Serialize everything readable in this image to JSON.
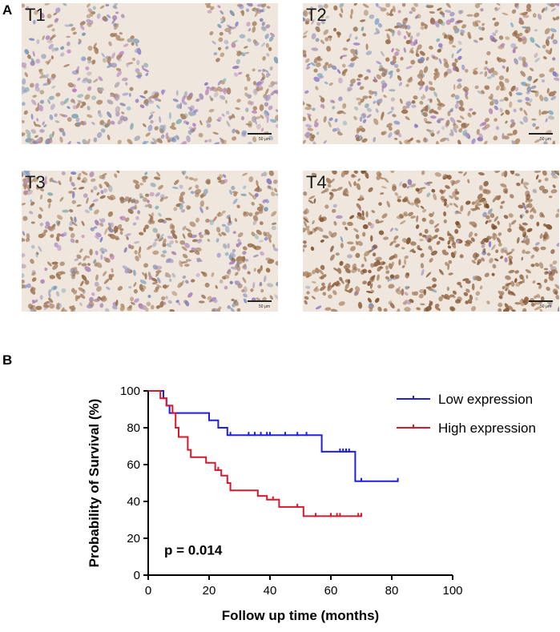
{
  "panel_a": {
    "letter": "A",
    "images": [
      {
        "label": "T1",
        "scale": "50 μm",
        "intensity": 0.25
      },
      {
        "label": "T2",
        "scale": "50 μm",
        "intensity": 0.5
      },
      {
        "label": "T3",
        "scale": "50 μm",
        "intensity": 0.55
      },
      {
        "label": "T4",
        "scale": "50 μm",
        "intensity": 0.95
      }
    ]
  },
  "panel_b": {
    "letter": "B"
  },
  "chart_data": {
    "type": "line",
    "step": true,
    "xlabel": "Follow up time (months)",
    "ylabel": "Probability of Survival (%)",
    "xlim": [
      0,
      100
    ],
    "ylim": [
      0,
      100
    ],
    "xticks": [
      0,
      20,
      40,
      60,
      80,
      100
    ],
    "yticks": [
      0,
      20,
      40,
      60,
      80,
      100
    ],
    "annotation": "p = 0.014",
    "legend_position": "top-right",
    "series": [
      {
        "name": "Low expression",
        "color": "#1f1fe0",
        "points": [
          [
            0,
            100
          ],
          [
            5,
            96
          ],
          [
            6,
            92
          ],
          [
            7,
            88
          ],
          [
            20,
            84
          ],
          [
            23,
            80
          ],
          [
            26,
            76
          ],
          [
            57,
            67
          ],
          [
            68,
            51
          ],
          [
            82,
            51
          ]
        ],
        "censored": [
          [
            27,
            76
          ],
          [
            33,
            76
          ],
          [
            35,
            76
          ],
          [
            37,
            76
          ],
          [
            39,
            76
          ],
          [
            40,
            76
          ],
          [
            45,
            76
          ],
          [
            49,
            76
          ],
          [
            52,
            76
          ],
          [
            63,
            67
          ],
          [
            64,
            67
          ],
          [
            65,
            67
          ],
          [
            66,
            67
          ],
          [
            70,
            51
          ],
          [
            82,
            51
          ]
        ]
      },
      {
        "name": "High expression",
        "color": "#d61a2b",
        "points": [
          [
            0,
            100
          ],
          [
            4,
            96
          ],
          [
            6,
            92
          ],
          [
            8,
            88
          ],
          [
            9,
            80
          ],
          [
            10,
            75
          ],
          [
            13,
            68
          ],
          [
            14,
            64
          ],
          [
            19,
            61
          ],
          [
            22,
            57
          ],
          [
            24,
            54
          ],
          [
            26,
            50
          ],
          [
            27,
            46
          ],
          [
            36,
            43
          ],
          [
            39,
            41
          ],
          [
            43,
            37
          ],
          [
            51,
            32
          ],
          [
            70,
            32
          ]
        ],
        "censored": [
          [
            23,
            57
          ],
          [
            41,
            41
          ],
          [
            49,
            37
          ],
          [
            55,
            32
          ],
          [
            60,
            32
          ],
          [
            62,
            32
          ],
          [
            63,
            32
          ],
          [
            69,
            32
          ],
          [
            70,
            32
          ]
        ]
      }
    ]
  }
}
